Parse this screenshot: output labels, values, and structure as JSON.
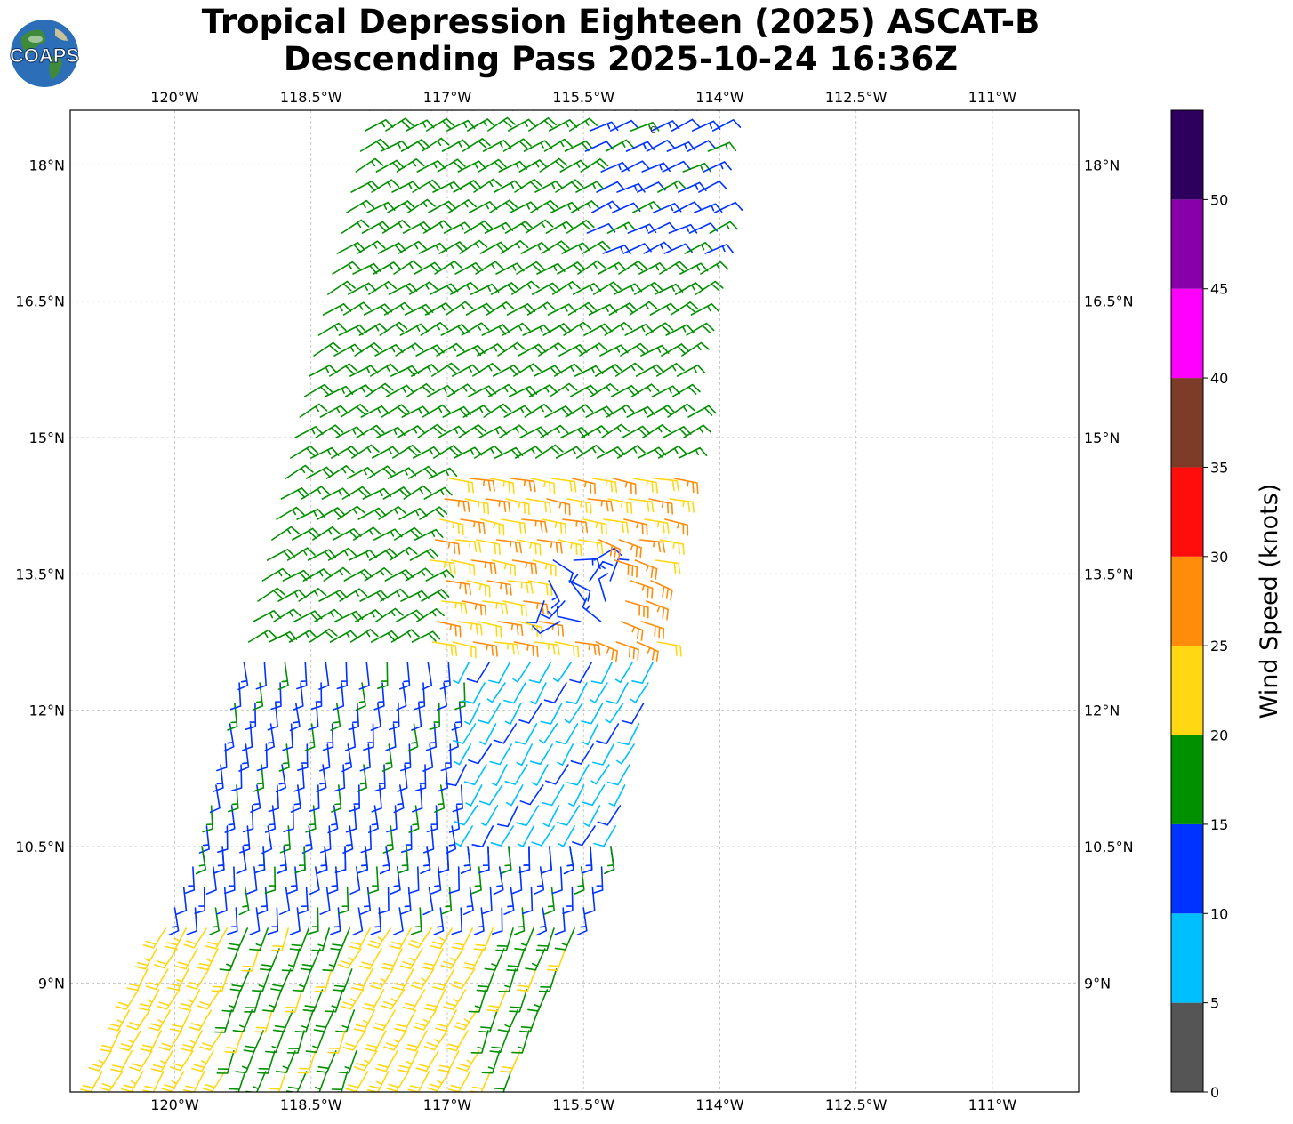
{
  "title": {
    "line1": "Tropical Depression Eighteen (2025) ASCAT-B",
    "line2": "Descending Pass 2025-10-24 16:36Z"
  },
  "logo": {
    "text": "COAPS",
    "icon": "globe-icon"
  },
  "map": {
    "x_ticks": [
      "120°W",
      "118.5°W",
      "117°W",
      "115.5°W",
      "114°W",
      "112.5°W",
      "111°W"
    ],
    "x_tick_values": [
      -120,
      -118.5,
      -117,
      -115.5,
      -114,
      -112.5,
      -111
    ],
    "y_ticks": [
      "18°N",
      "16.5°N",
      "15°N",
      "13.5°N",
      "12°N",
      "10.5°N",
      "9°N"
    ],
    "y_tick_values": [
      18,
      16.5,
      15,
      13.5,
      12,
      10.5,
      9
    ],
    "lon_range": [
      -121.15,
      -110.05
    ],
    "lat_range": [
      7.8,
      18.6
    ],
    "grid": true,
    "contour_label": "0"
  },
  "colorbar": {
    "label": "Wind Speed (knots)",
    "tick_labels": [
      "0",
      "5",
      "10",
      "15",
      "20",
      "25",
      "30",
      "35",
      "40",
      "45",
      "50"
    ],
    "bins": [
      {
        "min": 0,
        "max": 5,
        "color": "#555555"
      },
      {
        "min": 5,
        "max": 10,
        "color": "#00bfff"
      },
      {
        "min": 10,
        "max": 15,
        "color": "#0033ff"
      },
      {
        "min": 15,
        "max": 20,
        "color": "#009000"
      },
      {
        "min": 20,
        "max": 25,
        "color": "#ffd712"
      },
      {
        "min": 25,
        "max": 30,
        "color": "#ff8c0a"
      },
      {
        "min": 30,
        "max": 35,
        "color": "#ff0d0d"
      },
      {
        "min": 35,
        "max": 40,
        "color": "#7d3c28"
      },
      {
        "min": 40,
        "max": 45,
        "color": "#ff00ff"
      },
      {
        "min": 45,
        "max": 50,
        "color": "#8800aa"
      },
      {
        "min": 50,
        "max": 55,
        "color": "#2e005e"
      }
    ]
  },
  "chart_data": {
    "type": "wind-barb-map",
    "storm_center": {
      "lon": -115.6,
      "lat": 13.3
    },
    "swaths": [
      {
        "lat_min": 10.5,
        "lat_max": 18.6,
        "lon_west_at_bottom": -119.7,
        "lon_east_at_bottom": -115.1,
        "lon_west_at_top": -117.85,
        "lon_east_at_top": -114.0
      },
      {
        "lat_min": 7.8,
        "lat_max": 10.5,
        "lon_west_at_bottom": -120.9,
        "lon_east_at_bottom": -116.3,
        "lon_west_at_top": -119.7,
        "lon_east_at_top": -115.1
      }
    ],
    "wind_zones": [
      {
        "name": "north",
        "speed_knots": 17,
        "direction_from_deg": 60
      },
      {
        "name": "northeast edge",
        "speed_knots": 13,
        "direction_from_deg": 65
      },
      {
        "name": "middle west",
        "speed_knots": 13,
        "direction_from_deg": 175
      },
      {
        "name": "center",
        "speed_knots": 8,
        "direction_from_deg": 210
      },
      {
        "name": "eastern core",
        "speed_knots": 24,
        "direction_from_deg": 100
      },
      {
        "name": "max core",
        "speed_knots": 27,
        "direction_from_deg": 110
      },
      {
        "name": "south",
        "speed_knots": 18,
        "direction_from_deg": 200
      },
      {
        "name": "southwest",
        "speed_knots": 22,
        "direction_from_deg": 210
      }
    ]
  }
}
